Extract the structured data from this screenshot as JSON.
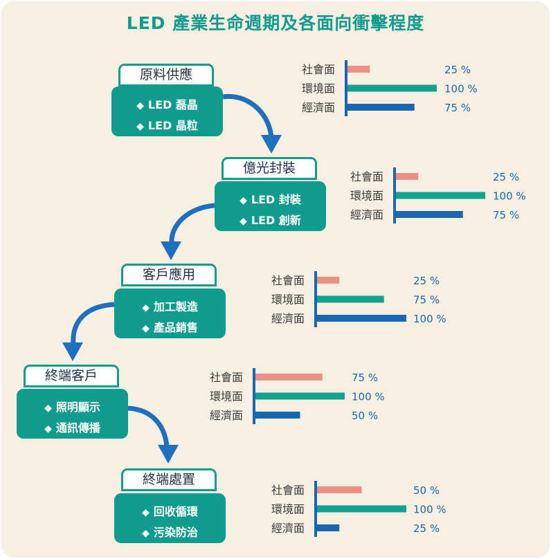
{
  "title": "LED 產業生命週期及各面向衝擊程度",
  "colors": {
    "title": "#0f9b8e",
    "teal": "#0f9b8e",
    "social": "#ec8f85",
    "environment": "#13a190",
    "economy": "#1767b1",
    "axis": "#1767b1",
    "arrow": "#1e6fbd",
    "value_text": "#1767b1"
  },
  "stages": [
    {
      "label": "原料供應",
      "items": [
        "LED 磊晶",
        "LED 晶粒"
      ]
    },
    {
      "label": "億光封裝",
      "items": [
        "LED 封裝",
        "LED 創新"
      ]
    },
    {
      "label": "客戶應用",
      "items": [
        "加工製造",
        "產品銷售"
      ]
    },
    {
      "label": "終端客戶",
      "items": [
        "照明顯示",
        "通訊傳播"
      ]
    },
    {
      "label": "終端處置",
      "items": [
        "回收循環",
        "污染防治"
      ]
    }
  ],
  "item_icon": "diamond-bullet",
  "chart_data": [
    {
      "type": "bar",
      "categories": [
        "社會面",
        "環境面",
        "經濟面"
      ],
      "values": [
        25,
        100,
        75
      ],
      "unit": "%",
      "xlim": [
        0,
        100
      ]
    },
    {
      "type": "bar",
      "categories": [
        "社會面",
        "環境面",
        "經濟面"
      ],
      "values": [
        25,
        100,
        75
      ],
      "unit": "%",
      "xlim": [
        0,
        100
      ]
    },
    {
      "type": "bar",
      "categories": [
        "社會面",
        "環境面",
        "經濟面"
      ],
      "values": [
        25,
        75,
        100
      ],
      "unit": "%",
      "xlim": [
        0,
        100
      ]
    },
    {
      "type": "bar",
      "categories": [
        "社會面",
        "環境面",
        "經濟面"
      ],
      "values": [
        75,
        100,
        50
      ],
      "unit": "%",
      "xlim": [
        0,
        100
      ]
    },
    {
      "type": "bar",
      "categories": [
        "社會面",
        "環境面",
        "經濟面"
      ],
      "values": [
        50,
        100,
        25
      ],
      "unit": "%",
      "xlim": [
        0,
        100
      ]
    }
  ]
}
